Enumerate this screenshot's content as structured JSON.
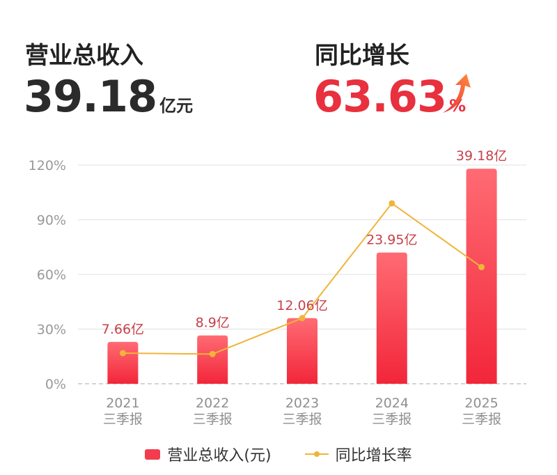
{
  "header": {
    "revenue_label": "营业总收入",
    "revenue_value": "39.18",
    "revenue_unit": "亿元",
    "growth_label": "同比增长",
    "growth_value": "63.63",
    "growth_unit": "%",
    "growth_icon": "up-arrow-icon"
  },
  "legend": {
    "bar_label": "营业总收入(元)",
    "line_label": "同比增长率"
  },
  "colors": {
    "bar_top": "#ff6b73",
    "bar_bottom": "#f2263a",
    "line": "#f0b43a",
    "label_text": "#c6404a",
    "accent_red": "#e8303e"
  },
  "chart_data": {
    "type": "bar",
    "categories": [
      "2021\n三季报",
      "2022\n三季报",
      "2023\n三季报",
      "2024\n三季报",
      "2025\n三季报"
    ],
    "ylim": [
      0,
      120
    ],
    "yticks": [
      "0%",
      "30%",
      "60%",
      "90%",
      "120%"
    ],
    "grid": true,
    "legend_position": "bottom",
    "series": [
      {
        "name": "营业总收入(元)",
        "type": "bar",
        "values": [
          23,
          26.5,
          36,
          72,
          118
        ],
        "labels": [
          "7.66亿",
          "8.9亿",
          "12.06亿",
          "23.95亿",
          "39.18亿"
        ]
      },
      {
        "name": "同比增长率",
        "type": "line",
        "values": [
          16.8,
          16.3,
          36,
          99,
          64
        ]
      }
    ]
  }
}
